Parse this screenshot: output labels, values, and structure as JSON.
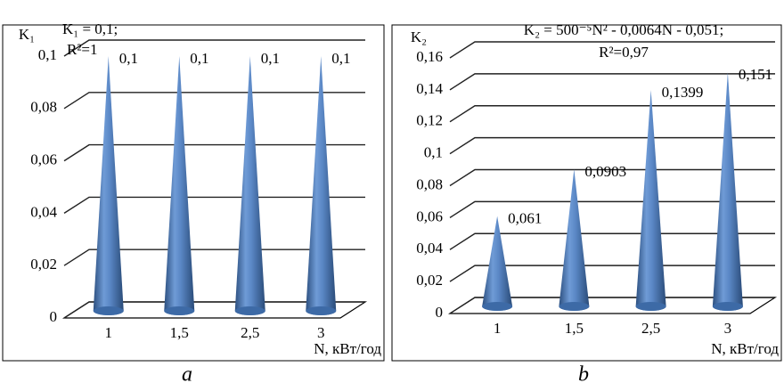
{
  "chart_data": [
    {
      "type": "cone",
      "y_label": "K₁",
      "annotations": [
        "K₁ = 0,1;",
        "R²=1"
      ],
      "x_label": "N, кВт/год",
      "caption": "a",
      "categories": [
        "1",
        "1,5",
        "2,5",
        "3"
      ],
      "values": [
        0.1,
        0.1,
        0.1,
        0.1
      ],
      "value_labels": [
        "0,1",
        "0,1",
        "0,1",
        "0,1"
      ],
      "color": "#4f81bd",
      "ylim": [
        0,
        0.1
      ],
      "yticks": [
        0,
        {
          "value": 0.02,
          "label": "0,02"
        },
        {
          "value": 0.04,
          "label": "0,04"
        },
        {
          "value": 0.06,
          "label": "0,06"
        },
        {
          "value": 0.08,
          "label": "0,08"
        },
        {
          "value": 0.1,
          "label": "0,1"
        }
      ],
      "grid": true
    },
    {
      "type": "cone",
      "y_label": "K₂",
      "annotations": [
        "K₂ = 500⁻⁵N² - 0,0064N - 0,051;",
        "R²=0,97"
      ],
      "x_label": "N, кВт/год",
      "caption": "b",
      "categories": [
        "1",
        "1,5",
        "2,5",
        "3"
      ],
      "values": [
        0.061,
        0.0903,
        0.1399,
        0.151
      ],
      "value_labels": [
        "0,061",
        "0,0903",
        "0,1399",
        "0,151"
      ],
      "color": "#4f81bd",
      "ylim": [
        0,
        0.16
      ],
      "yticks": [
        0,
        {
          "value": 0.02,
          "label": "0,02"
        },
        {
          "value": 0.04,
          "label": "0,04"
        },
        {
          "value": 0.06,
          "label": "0,06"
        },
        {
          "value": 0.08,
          "label": "0,08"
        },
        {
          "value": 0.1,
          "label": "0,1"
        },
        {
          "value": 0.12,
          "label": "0,12"
        },
        {
          "value": 0.14,
          "label": "0,14"
        },
        {
          "value": 0.16,
          "label": "0,16"
        }
      ],
      "grid": true
    }
  ]
}
